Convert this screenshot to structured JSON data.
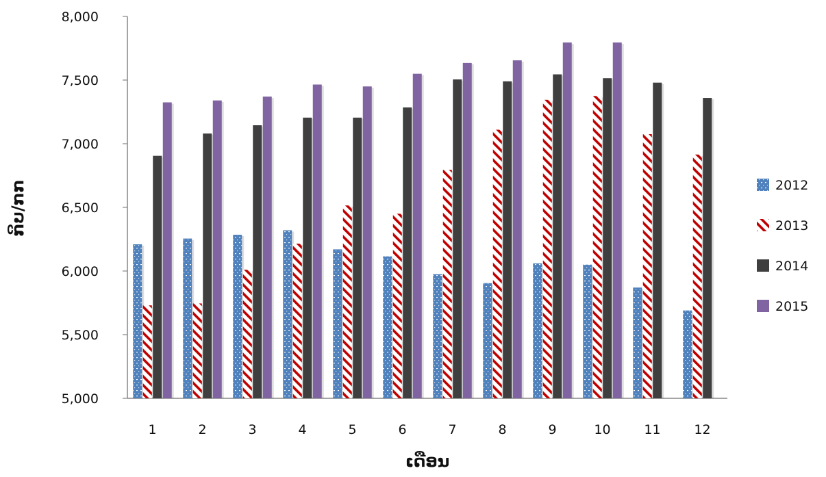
{
  "chart_data": {
    "type": "bar",
    "title": "",
    "xlabel": "ເດືອນ",
    "ylabel": "ກິບ/ກກ",
    "ylim": [
      5000,
      8000
    ],
    "yticks": [
      5000,
      5500,
      6000,
      6500,
      7000,
      7500,
      8000
    ],
    "ytick_labels": [
      "5,000",
      "5,500",
      "6,000",
      "6,500",
      "7,000",
      "7,500",
      "8,000"
    ],
    "categories": [
      "1",
      "2",
      "3",
      "4",
      "5",
      "6",
      "7",
      "8",
      "9",
      "10",
      "11",
      "12"
    ],
    "series": [
      {
        "name": "2012",
        "color": "#4f81bd",
        "pattern": "dotted",
        "values": [
          6210,
          6255,
          6285,
          6320,
          6170,
          6115,
          5975,
          5905,
          6060,
          6050,
          5870,
          5690
        ]
      },
      {
        "name": "2013",
        "color": "#c00000",
        "pattern": "diagonal-hatch",
        "values": [
          5730,
          5745,
          6010,
          6215,
          6515,
          6450,
          6795,
          7110,
          7345,
          7375,
          7075,
          6915
        ]
      },
      {
        "name": "2014",
        "color": "#3f3f3f",
        "pattern": "solid",
        "values": [
          6905,
          7080,
          7145,
          7205,
          7205,
          7285,
          7505,
          7490,
          7545,
          7515,
          7480,
          7360
        ]
      },
      {
        "name": "2015",
        "color": "#8064a2",
        "pattern": "solid",
        "values": [
          7325,
          7340,
          7370,
          7465,
          7450,
          7550,
          7635,
          7655,
          7795,
          7795,
          null,
          null
        ]
      }
    ],
    "grid": false,
    "legend_position": "right"
  }
}
